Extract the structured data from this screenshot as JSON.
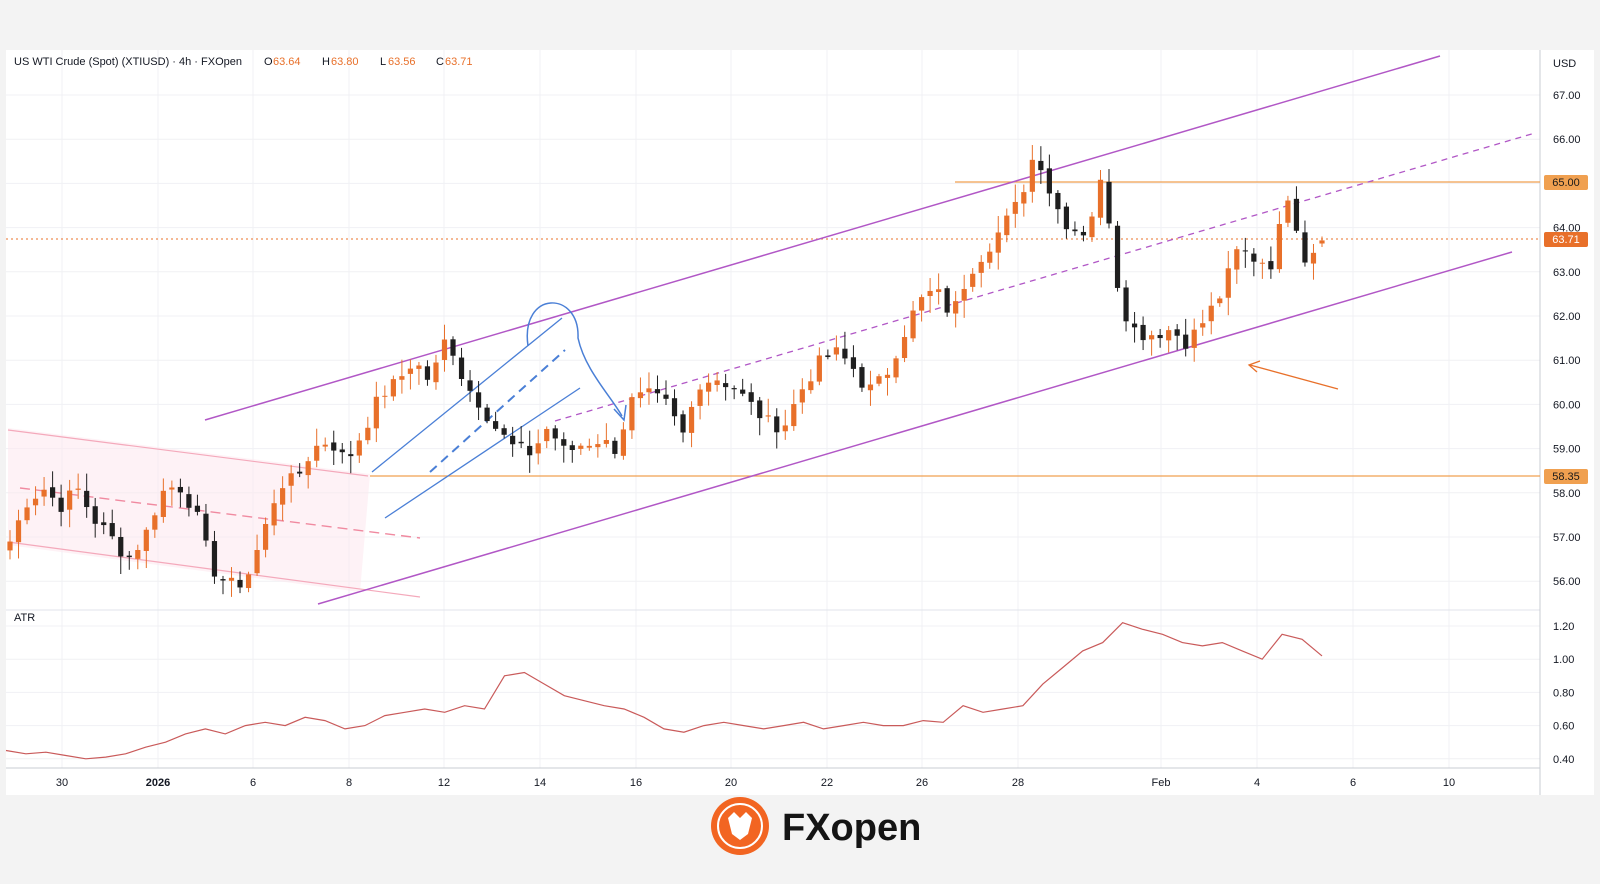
{
  "header": {
    "symbol": "US WTI Crude (Spot) (XTIUSD) · 4h · FXOpen",
    "o_label": "O",
    "o_value": "63.64",
    "h_label": "H",
    "h_value": "63.80",
    "l_label": "L",
    "l_value": "63.56",
    "c_label": "C",
    "c_value": "63.71"
  },
  "axis": {
    "currency": "USD",
    "price_ticks": [
      "67.00",
      "66.00",
      "65.00",
      "64.00",
      "63.00",
      "62.00",
      "61.00",
      "60.00",
      "59.00",
      "58.00",
      "57.00",
      "56.00"
    ],
    "atr_ticks": [
      "1.20",
      "1.00",
      "0.80",
      "0.60",
      "0.40"
    ],
    "date_labels": [
      "30",
      "2026",
      "6",
      "8",
      "12",
      "14",
      "16",
      "20",
      "22",
      "26",
      "28",
      "Feb",
      "4",
      "6",
      "10"
    ]
  },
  "badges": {
    "level_high": "65.00",
    "last_price": "63.71",
    "level_low": "58.35"
  },
  "indicator": {
    "name": "ATR"
  },
  "brand": {
    "name": "FXopen"
  },
  "colors": {
    "bull": "#e8702a",
    "bear": "#1f1f1f",
    "channel": "#b157c6",
    "level": "#f0a050",
    "atr": "#c95a5a",
    "flag": "#4a7fd6",
    "brand_orange": "#f26522"
  },
  "chart_data": [
    {
      "type": "candlestick",
      "title": "US WTI Crude (Spot) (XTIUSD) · 4h · FXOpen",
      "ylabel": "USD",
      "ylim": [
        55.5,
        67.5
      ],
      "x_labels": [
        "30",
        "2026",
        "6",
        "8",
        "12",
        "14",
        "16",
        "20",
        "22",
        "26",
        "28",
        "Feb",
        "4",
        "6",
        "10"
      ],
      "last": {
        "open": 63.64,
        "high": 63.8,
        "low": 63.56,
        "close": 63.71
      },
      "horizontal_levels": [
        65.0,
        63.71,
        58.35
      ],
      "close_path": [
        56.9,
        57.8,
        58.1,
        57.7,
        58.1,
        57.4,
        57.0,
        56.5,
        57.0,
        58.0,
        58.2,
        57.6,
        56.3,
        55.9,
        56.0,
        57.0,
        58.2,
        58.3,
        59.0,
        59.2,
        58.7,
        59.4,
        60.2,
        60.5,
        61.0,
        60.5,
        61.6,
        60.5,
        60.0,
        59.4,
        59.0,
        58.9,
        59.5,
        58.9,
        59.1,
        59.2,
        59.0,
        60.1,
        60.2,
        60.0,
        59.3,
        60.5,
        60.6,
        60.4,
        60.0,
        59.6,
        59.5,
        60.3,
        60.9,
        61.2,
        60.9,
        60.3,
        60.6,
        61.5,
        62.3,
        62.6,
        62.0,
        63.0,
        63.5,
        64.0,
        64.6,
        65.8,
        64.6,
        64.0,
        63.9,
        65.2,
        62.3,
        61.6,
        61.6,
        61.7,
        61.4,
        61.9,
        62.5,
        63.5,
        63.3,
        63.2,
        64.8,
        63.3,
        63.7
      ],
      "atr": [
        0.45,
        0.43,
        0.44,
        0.42,
        0.4,
        0.41,
        0.43,
        0.47,
        0.5,
        0.55,
        0.58,
        0.55,
        0.6,
        0.62,
        0.6,
        0.65,
        0.63,
        0.58,
        0.6,
        0.66,
        0.68,
        0.7,
        0.68,
        0.72,
        0.7,
        0.9,
        0.92,
        0.85,
        0.78,
        0.75,
        0.72,
        0.7,
        0.65,
        0.58,
        0.56,
        0.6,
        0.62,
        0.6,
        0.58,
        0.6,
        0.62,
        0.58,
        0.6,
        0.62,
        0.6,
        0.6,
        0.63,
        0.62,
        0.72,
        0.68,
        0.7,
        0.72,
        0.85,
        0.95,
        1.05,
        1.1,
        1.22,
        1.18,
        1.15,
        1.1,
        1.08,
        1.1,
        1.05,
        1.0,
        1.15,
        1.12,
        1.02
      ]
    }
  ]
}
